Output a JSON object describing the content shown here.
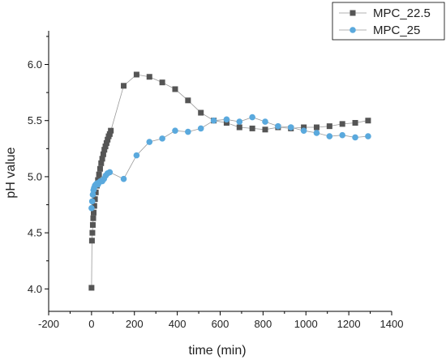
{
  "colors": {
    "MPC_22.5": "#555555",
    "MPC_25": "#5aa9dd",
    "line": "#999999",
    "axis": "#000000"
  },
  "chart_data": {
    "type": "scatter",
    "title": "",
    "xlabel": "time (min)",
    "ylabel": "pH value",
    "xlim": [
      -200,
      1400
    ],
    "ylim": [
      3.8,
      6.3
    ],
    "x_ticks": [
      -200,
      0,
      200,
      400,
      600,
      800,
      1000,
      1200,
      1400
    ],
    "y_ticks": [
      4.0,
      4.5,
      5.0,
      5.5,
      6.0
    ],
    "x_tick_labels": [
      "-200",
      "0",
      "200",
      "400",
      "600",
      "800",
      "1000",
      "1200",
      "1400"
    ],
    "y_tick_labels": [
      "4.0",
      "4.5",
      "5.0",
      "5.5",
      "6.0"
    ],
    "grid": false,
    "legend_position": "top-right",
    "series": [
      {
        "name": "MPC_22.5",
        "marker": "square",
        "x": [
          0,
          2,
          4,
          6,
          8,
          10,
          13,
          16,
          20,
          25,
          30,
          35,
          40,
          45,
          50,
          55,
          60,
          65,
          70,
          75,
          80,
          85,
          90,
          150,
          210,
          270,
          330,
          390,
          450,
          510,
          570,
          630,
          690,
          750,
          810,
          870,
          930,
          990,
          1050,
          1110,
          1170,
          1230,
          1290
        ],
        "y": [
          4.01,
          4.43,
          4.5,
          4.57,
          4.63,
          4.68,
          4.74,
          4.8,
          4.86,
          4.92,
          4.97,
          5.02,
          5.07,
          5.12,
          5.16,
          5.2,
          5.24,
          5.27,
          5.3,
          5.33,
          5.36,
          5.38,
          5.41,
          5.81,
          5.91,
          5.89,
          5.84,
          5.78,
          5.68,
          5.57,
          5.5,
          5.48,
          5.44,
          5.43,
          5.42,
          5.44,
          5.43,
          5.44,
          5.44,
          5.45,
          5.47,
          5.48,
          5.5
        ]
      },
      {
        "name": "MPC_25",
        "marker": "circle",
        "x": [
          0,
          3,
          6,
          9,
          12,
          16,
          20,
          25,
          30,
          36,
          42,
          50,
          58,
          66,
          75,
          85,
          150,
          210,
          270,
          330,
          390,
          450,
          510,
          570,
          630,
          690,
          750,
          810,
          870,
          930,
          990,
          1050,
          1110,
          1170,
          1230,
          1290
        ],
        "y": [
          4.72,
          4.78,
          4.84,
          4.88,
          4.9,
          4.92,
          4.93,
          4.94,
          4.93,
          4.95,
          4.96,
          4.96,
          4.98,
          5.01,
          5.03,
          5.04,
          4.98,
          5.19,
          5.31,
          5.34,
          5.41,
          5.4,
          5.43,
          5.5,
          5.51,
          5.49,
          5.53,
          5.49,
          5.45,
          5.44,
          5.41,
          5.39,
          5.36,
          5.37,
          5.35,
          5.36
        ]
      }
    ]
  }
}
